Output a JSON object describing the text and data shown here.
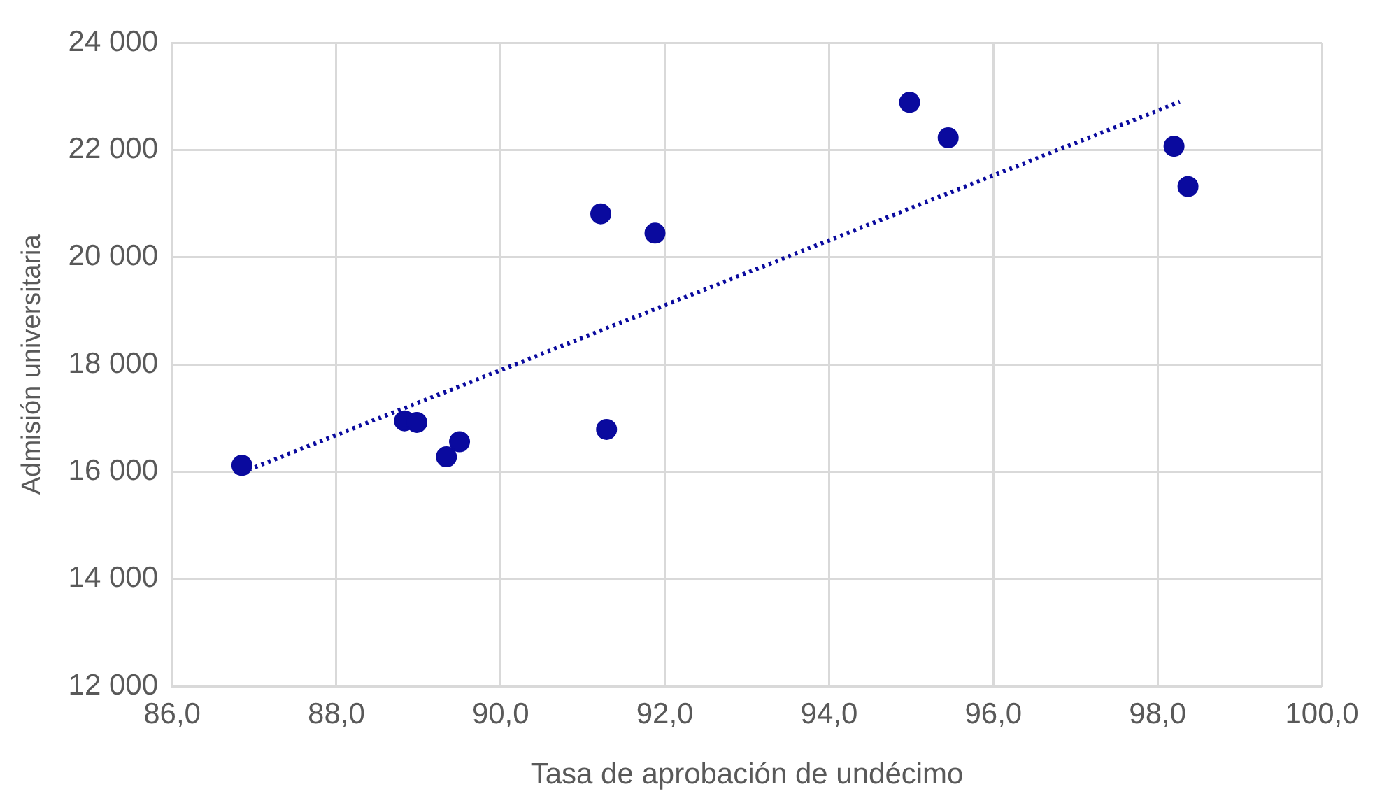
{
  "chart_data": {
    "type": "scatter",
    "xlabel": "Tasa de aprobación de undécimo",
    "ylabel": "Admisión universitaria",
    "xlim": [
      86,
      100
    ],
    "ylim": [
      12000,
      24000
    ],
    "xticks": [
      {
        "value": 86,
        "label": "86,0"
      },
      {
        "value": 88,
        "label": "88,0"
      },
      {
        "value": 90,
        "label": "90,0"
      },
      {
        "value": 92,
        "label": "92,0"
      },
      {
        "value": 94,
        "label": "94,0"
      },
      {
        "value": 96,
        "label": "96,0"
      },
      {
        "value": 98,
        "label": "98,0"
      },
      {
        "value": 100,
        "label": "100,0"
      }
    ],
    "yticks": [
      {
        "value": 12000,
        "label": "12 000"
      },
      {
        "value": 14000,
        "label": "14 000"
      },
      {
        "value": 16000,
        "label": "16 000"
      },
      {
        "value": 18000,
        "label": "18 000"
      },
      {
        "value": 20000,
        "label": "20 000"
      },
      {
        "value": 22000,
        "label": "22 000"
      },
      {
        "value": 24000,
        "label": "24 000"
      }
    ],
    "grid": true,
    "legend": false,
    "marker": "circle",
    "series": [
      {
        "type": "scatter",
        "color": "#0a0a9e",
        "x": [
          86.85,
          88.83,
          88.98,
          89.34,
          89.5,
          91.22,
          91.29,
          91.88,
          94.98,
          95.45,
          98.2,
          98.37
        ],
        "values": [
          16120,
          16950,
          16920,
          16280,
          16560,
          20810,
          16790,
          20450,
          22890,
          22230,
          22070,
          21320
        ]
      },
      {
        "type": "line",
        "color": "#0a0a9e",
        "line_style": "dotted",
        "marker": "none",
        "x": [
          86.85,
          98.27
        ],
        "values": [
          15990,
          22900
        ]
      }
    ]
  }
}
